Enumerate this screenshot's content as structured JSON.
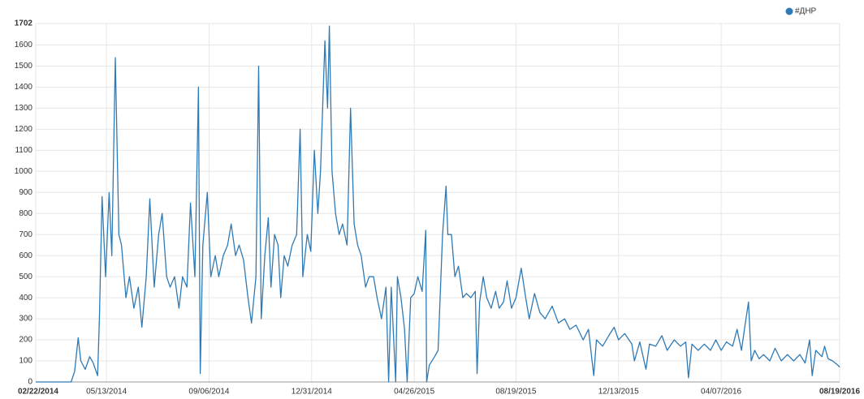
{
  "chart_data": {
    "type": "line",
    "series": [
      {
        "name": "#ДНР",
        "color": "#2f7ab5",
        "x": [
          "02/22/2014",
          "04/03/2014",
          "04/07/2014",
          "04/11/2014",
          "04/14/2014",
          "04/19/2014",
          "04/24/2014",
          "04/28/2014",
          "05/03/2014",
          "05/05/2014",
          "05/08/2014",
          "05/12/2014",
          "05/16/2014",
          "05/19/2014",
          "05/23/2014",
          "05/27/2014",
          "05/30/2014",
          "06/04/2014",
          "06/08/2014",
          "06/13/2014",
          "06/18/2014",
          "06/22/2014",
          "06/27/2014",
          "07/01/2014",
          "07/06/2014",
          "07/11/2014",
          "07/15/2014",
          "07/20/2014",
          "07/24/2014",
          "07/29/2014",
          "08/03/2014",
          "08/07/2014",
          "08/12/2014",
          "08/16/2014",
          "08/21/2014",
          "08/25/2014",
          "08/27/2014",
          "08/30/2014",
          "09/04/2014",
          "09/08/2014",
          "09/13/2014",
          "09/17/2014",
          "09/22/2014",
          "09/27/2014",
          "10/01/2014",
          "10/06/2014",
          "10/10/2014",
          "10/15/2014",
          "10/20/2014",
          "10/24/2014",
          "10/29/2014",
          "11/01/2014",
          "11/04/2014",
          "11/08/2014",
          "11/12/2014",
          "11/15/2014",
          "11/19/2014",
          "11/23/2014",
          "11/26/2014",
          "11/30/2014",
          "12/04/2014",
          "12/09/2014",
          "12/14/2014",
          "12/18/2014",
          "12/21/2014",
          "12/26/2014",
          "12/30/2014",
          "01/03/2015",
          "01/07/2015",
          "01/10/2015",
          "01/15/2015",
          "01/18/2015",
          "01/20/2015",
          "01/23/2015",
          "01/27/2015",
          "01/31/2015",
          "02/04/2015",
          "02/09/2015",
          "02/13/2015",
          "02/17/2015",
          "02/21/2015",
          "02/25/2015",
          "03/02/2015",
          "03/06/2015",
          "03/11/2015",
          "03/15/2015",
          "03/20/2015",
          "03/25/2015",
          "03/28/2015",
          "03/31/2015",
          "04/05/2015",
          "04/07/2015",
          "04/11/2015",
          "04/15/2015",
          "04/18/2015",
          "04/22/2015",
          "04/26/2015",
          "04/30/2015",
          "05/05/2015",
          "05/09/2015",
          "05/10/2015",
          "05/13/2015",
          "05/19/2015",
          "05/23/2015",
          "05/28/2015",
          "06/01/2015",
          "06/03/2015",
          "06/07/2015",
          "06/11/2015",
          "06/15/2015",
          "06/20/2015",
          "06/24/2015",
          "06/29/2015",
          "07/04/2015",
          "07/06/2015",
          "07/09/2015",
          "07/13/2015",
          "07/17/2015",
          "07/22/2015",
          "07/27/2015",
          "07/31/2015",
          "08/05/2015",
          "08/09/2015",
          "08/14/2015",
          "08/19/2015",
          "08/25/2015",
          "08/30/2015",
          "09/03/2015",
          "09/09/2015",
          "09/15/2015",
          "09/21/2015",
          "09/29/2015",
          "10/06/2015",
          "10/13/2015",
          "10/19/2015",
          "10/26/2015",
          "11/03/2015",
          "11/09/2015",
          "11/15/2015",
          "11/18/2015",
          "11/25/2015",
          "12/02/2015",
          "12/08/2015",
          "12/13/2015",
          "12/20/2015",
          "12/28/2015",
          "12/31/2015",
          "01/06/2016",
          "01/13/2016",
          "01/17/2016",
          "01/24/2016",
          "01/31/2016",
          "02/06/2016",
          "02/14/2016",
          "02/21/2016",
          "02/27/2016",
          "03/01/2016",
          "03/05/2016",
          "03/12/2016",
          "03/19/2016",
          "03/26/2016",
          "04/01/2016",
          "04/07/2016",
          "04/13/2016",
          "04/20/2016",
          "04/25/2016",
          "04/30/2016",
          "05/04/2016",
          "05/08/2016",
          "05/11/2016",
          "05/15/2016",
          "05/20/2016",
          "05/25/2016",
          "06/01/2016",
          "06/07/2016",
          "06/14/2016",
          "06/21/2016",
          "06/28/2016",
          "07/05/2016",
          "07/11/2016",
          "07/16/2016",
          "07/19/2016",
          "07/23/2016",
          "07/30/2016",
          "08/02/2016",
          "08/06/2016",
          "08/11/2016",
          "08/17/2016",
          "08/19/2016"
        ],
        "values": [
          0,
          0,
          50,
          210,
          100,
          60,
          120,
          90,
          30,
          300,
          880,
          500,
          900,
          600,
          1540,
          700,
          650,
          400,
          500,
          350,
          450,
          260,
          500,
          870,
          450,
          700,
          800,
          500,
          450,
          500,
          350,
          500,
          450,
          850,
          500,
          1400,
          40,
          650,
          900,
          500,
          600,
          500,
          600,
          650,
          750,
          600,
          650,
          580,
          400,
          280,
          500,
          1500,
          300,
          600,
          780,
          450,
          700,
          650,
          400,
          600,
          550,
          650,
          700,
          1200,
          500,
          700,
          620,
          1100,
          800,
          1000,
          1620,
          1300,
          1690,
          1000,
          800,
          700,
          750,
          650,
          1300,
          750,
          650,
          600,
          450,
          500,
          500,
          400,
          300,
          450,
          0,
          450,
          0,
          500,
          400,
          250,
          0,
          400,
          420,
          500,
          430,
          720,
          0,
          80,
          120,
          150,
          700,
          930,
          700,
          700,
          500,
          550,
          400,
          420,
          400,
          430,
          40,
          380,
          500,
          400,
          350,
          430,
          350,
          380,
          480,
          350,
          400,
          540,
          400,
          300,
          420,
          330,
          300,
          360,
          280,
          300,
          250,
          270,
          200,
          250,
          30,
          200,
          170,
          220,
          260,
          200,
          230,
          180,
          100,
          190,
          60,
          180,
          170,
          220,
          150,
          200,
          170,
          190,
          20,
          180,
          150,
          180,
          150,
          200,
          150,
          190,
          170,
          250,
          150,
          270,
          380,
          100,
          150,
          110,
          130,
          100,
          160,
          100,
          130,
          100,
          130,
          90,
          200,
          30,
          150,
          120,
          170,
          110,
          100,
          80,
          70
        ]
      }
    ],
    "xlim": [
      "02/22/2014",
      "08/19/2016"
    ],
    "xticks": [
      "02/22/2014",
      "05/13/2014",
      "09/06/2014",
      "12/31/2014",
      "04/26/2015",
      "08/19/2015",
      "12/13/2015",
      "04/07/2016",
      "08/19/2016"
    ],
    "ylim": [
      0,
      1702
    ],
    "yticks": [
      0,
      100,
      200,
      300,
      400,
      500,
      600,
      700,
      800,
      900,
      1000,
      1100,
      1200,
      1300,
      1400,
      1500,
      1600,
      1702
    ],
    "grid": true,
    "legend": "top-right"
  }
}
